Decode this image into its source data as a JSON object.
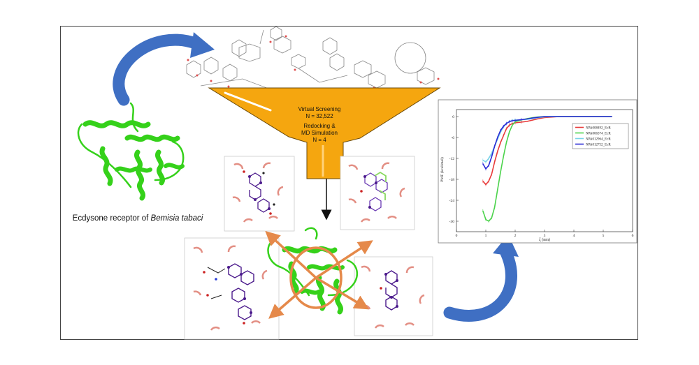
{
  "receptor": {
    "caption_prefix": "Ecdysone receptor of ",
    "caption_species": "Bemisia tabaci"
  },
  "funnel": {
    "line1": "Virtual Screening",
    "line2": "N = 32,522",
    "line3": "Redocking &",
    "line4": "MD Simulation",
    "line5": "N = 4"
  },
  "colors": {
    "funnel": "#f5a60f",
    "protein": "#35d11a",
    "arrow_blue": "#3f6fc3",
    "arrow_orange": "#e5894a",
    "atom_purple": "#4b1a8c"
  },
  "chart_data": {
    "type": "line",
    "xlabel": "ξ (nm)",
    "ylabel": "PMF (kcal/mol)",
    "xlim": [
      0,
      6
    ],
    "ylim": [
      -33,
      2
    ],
    "xticks": [
      0,
      1,
      2,
      3,
      4,
      5,
      6
    ],
    "yticks": [
      0,
      -6,
      -12,
      -18,
      -24,
      -30
    ],
    "legend_position": "right",
    "series": [
      {
        "name": "NPA008492_EcR",
        "color": "#e83a3a",
        "x": [
          0.9,
          1.0,
          1.1,
          1.2,
          1.3,
          1.4,
          1.5,
          1.6,
          1.7,
          1.8,
          1.9,
          2.0,
          2.2,
          2.4,
          2.6,
          2.8,
          3.0,
          3.5,
          4.0,
          4.5,
          5.0,
          5.3
        ],
        "y": [
          -18.5,
          -19.5,
          -18.5,
          -16.5,
          -13,
          -10,
          -7.5,
          -5.5,
          -3.5,
          -2.5,
          -2,
          -1.8,
          -1.6,
          -1.4,
          -1,
          -0.6,
          -0.3,
          0,
          0,
          0,
          0,
          0
        ]
      },
      {
        "name": "NPA006374_EcR",
        "color": "#4bd34b",
        "x": [
          0.9,
          1.0,
          1.1,
          1.2,
          1.3,
          1.4,
          1.5,
          1.6,
          1.7,
          1.8,
          1.9,
          2.0,
          2.2,
          2.4,
          2.6,
          2.8,
          3.0,
          3.5,
          4.0,
          4.5,
          5.0,
          5.3
        ],
        "y": [
          -27,
          -29.5,
          -30,
          -29,
          -26,
          -21,
          -16,
          -11.5,
          -7.5,
          -4.5,
          -2.5,
          -1.5,
          -1,
          -0.6,
          -0.3,
          -0.1,
          0,
          0,
          0,
          0,
          0,
          0
        ]
      },
      {
        "name": "NPA012964_EcR",
        "color": "#7ad4e8",
        "x": [
          0.9,
          1.0,
          1.1,
          1.2,
          1.3,
          1.4,
          1.5,
          1.6,
          1.7,
          1.8,
          1.9,
          2.0,
          2.2,
          2.4,
          2.6,
          2.8,
          3.0,
          3.5,
          4.0,
          4.5,
          5.0,
          5.3
        ],
        "y": [
          -12.5,
          -13,
          -12,
          -10.5,
          -8.5,
          -6.5,
          -4.5,
          -3,
          -2,
          -1.4,
          -1.1,
          -1,
          -0.9,
          -0.8,
          -0.6,
          -0.3,
          -0.1,
          0,
          0,
          0,
          0,
          0
        ]
      },
      {
        "name": "NPA012752_EcR",
        "color": "#2a2ad6",
        "x": [
          0.9,
          1.0,
          1.1,
          1.2,
          1.3,
          1.4,
          1.5,
          1.6,
          1.7,
          1.8,
          1.9,
          2.0,
          2.2,
          2.4,
          2.6,
          2.8,
          3.0,
          3.5,
          4.0,
          4.5,
          5.0,
          5.3
        ],
        "y": [
          -13.5,
          -15,
          -14,
          -11.5,
          -8.5,
          -6,
          -4,
          -2.8,
          -2,
          -1.5,
          -1.2,
          -1.1,
          -0.9,
          -0.7,
          -0.4,
          -0.2,
          0,
          0,
          0,
          0,
          0,
          0
        ]
      }
    ]
  }
}
